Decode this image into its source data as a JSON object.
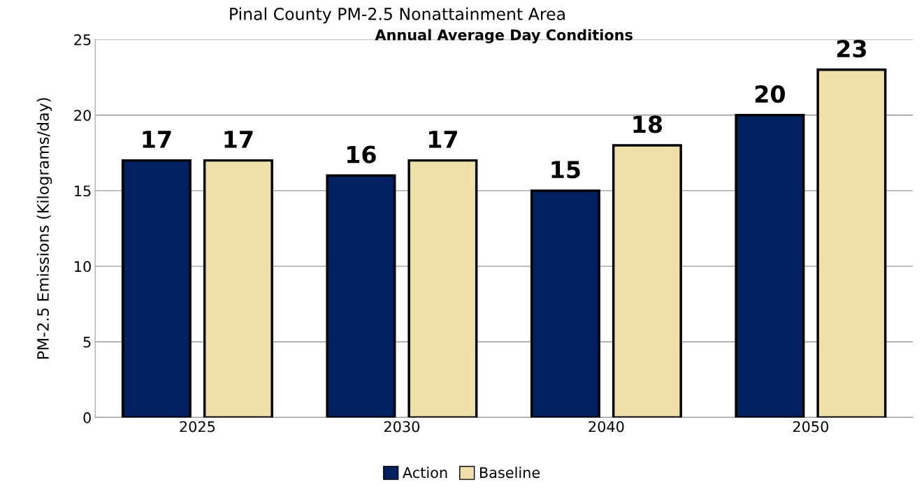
{
  "chart_data": {
    "type": "bar",
    "title": "Pinal County PM-2.5 Nonattainment Area",
    "subtitle": "Annual Average Day Conditions",
    "ylabel": "PM-2.5 Emissions (Kilograms/day)",
    "categories": [
      "2025",
      "2030",
      "2040",
      "2050"
    ],
    "series": [
      {
        "name": "Action",
        "color": "#002060",
        "values": [
          17,
          16,
          15,
          20
        ]
      },
      {
        "name": "Baseline",
        "color": "#eee0a8",
        "values": [
          17,
          17,
          18,
          23
        ]
      }
    ],
    "ylim": [
      0,
      25
    ],
    "yticks": [
      0,
      5,
      10,
      15,
      20,
      25
    ],
    "grid": "y",
    "legend": "bottom",
    "data_labels": true
  }
}
